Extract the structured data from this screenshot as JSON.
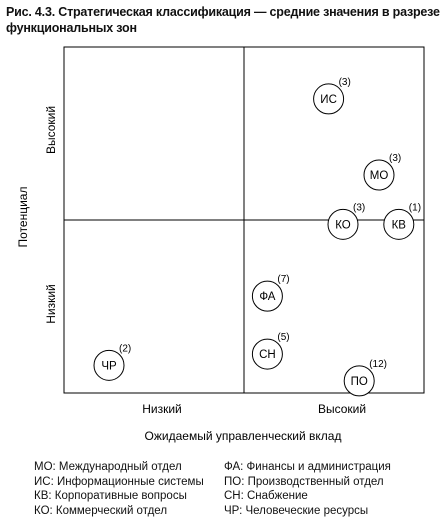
{
  "title_lines": [
    "Рис. 4.3. Стратегическая классификация — средние значения в разрезе",
    "функциональных зон"
  ],
  "chart_data": {
    "type": "scatter",
    "title": "Рис. 4.3. Стратегическая классификация — средние значения в разрезе функциональных зон",
    "xlabel": "Ожидаемый управленческий вклад",
    "ylabel": "Потенциал",
    "x_categories": [
      "Низкий",
      "Высокий"
    ],
    "y_categories": [
      "Низкий",
      "Высокий"
    ],
    "xlim": [
      0,
      4
    ],
    "ylim": [
      0,
      4
    ],
    "grid": false,
    "quadrant_dividers": {
      "x": 2,
      "y": 2
    },
    "points": [
      {
        "label": "ИС",
        "count": "(3)",
        "x": 2.94,
        "y": 3.4
      },
      {
        "label": "МО",
        "count": "(3)",
        "x": 3.5,
        "y": 2.52
      },
      {
        "label": "КО",
        "count": "(3)",
        "x": 3.1,
        "y": 1.95
      },
      {
        "label": "КВ",
        "count": "(1)",
        "x": 3.72,
        "y": 1.95
      },
      {
        "label": "ФА",
        "count": "(7)",
        "x": 2.26,
        "y": 1.12
      },
      {
        "label": "СН",
        "count": "(5)",
        "x": 2.26,
        "y": 0.45
      },
      {
        "label": "ПО",
        "count": "(12)",
        "x": 3.28,
        "y": 0.14
      },
      {
        "label": "ЧР",
        "count": "(2)",
        "x": 0.5,
        "y": 0.32
      }
    ]
  },
  "legend": {
    "left": [
      "МО: Международный отдел",
      "ИС: Информационные системы",
      "КВ: Корпоративные вопросы",
      "КО: Коммерческий отдел"
    ],
    "right": [
      "ФА: Финансы и администрация",
      "ПО: Производственный отдел",
      "СН: Снабжение",
      "ЧР: Человеческие ресурсы"
    ]
  }
}
